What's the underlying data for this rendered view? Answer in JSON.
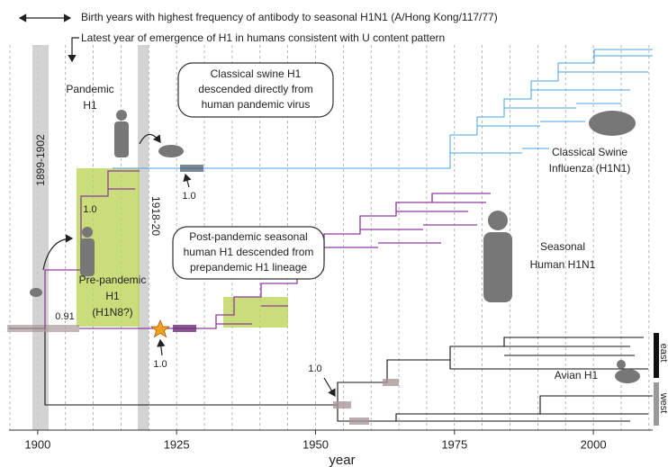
{
  "annotations": {
    "birth_years": "Birth years with highest frequency of antibody to seasonal H1N1 (A/Hong Kong/117/77)",
    "latest_emergence": "Latest year of emergence of H1 in humans consistent with U content pattern"
  },
  "labels": {
    "pandemic": [
      "Pandemic",
      "H1"
    ],
    "classical_swine": [
      "Classical Swine",
      "Influenza (H1N1)"
    ],
    "seasonal": [
      "Seasonal",
      "Human H1N1"
    ],
    "prepandemic": [
      "Pre-pandemic",
      "H1",
      "(H1N8?)"
    ],
    "avian": "Avian H1"
  },
  "callouts": {
    "classical_swine": [
      "Classical swine H1",
      "descended directly from",
      "human pandemic virus"
    ],
    "post_pandemic": [
      "Post-pandemic seasonal",
      "human H1 descended from",
      "prepandemic H1 lineage"
    ]
  },
  "support": [
    "1.0",
    "1.0",
    "0.91",
    "1.0",
    "1.0"
  ],
  "bands": [
    "1899-1902",
    "1918-20"
  ],
  "regions": [
    "east",
    "west"
  ],
  "axis": {
    "label": "year",
    "xlim": [
      1895,
      2011
    ],
    "xticks": [
      1900,
      1925,
      1950,
      1975,
      2000
    ]
  }
}
